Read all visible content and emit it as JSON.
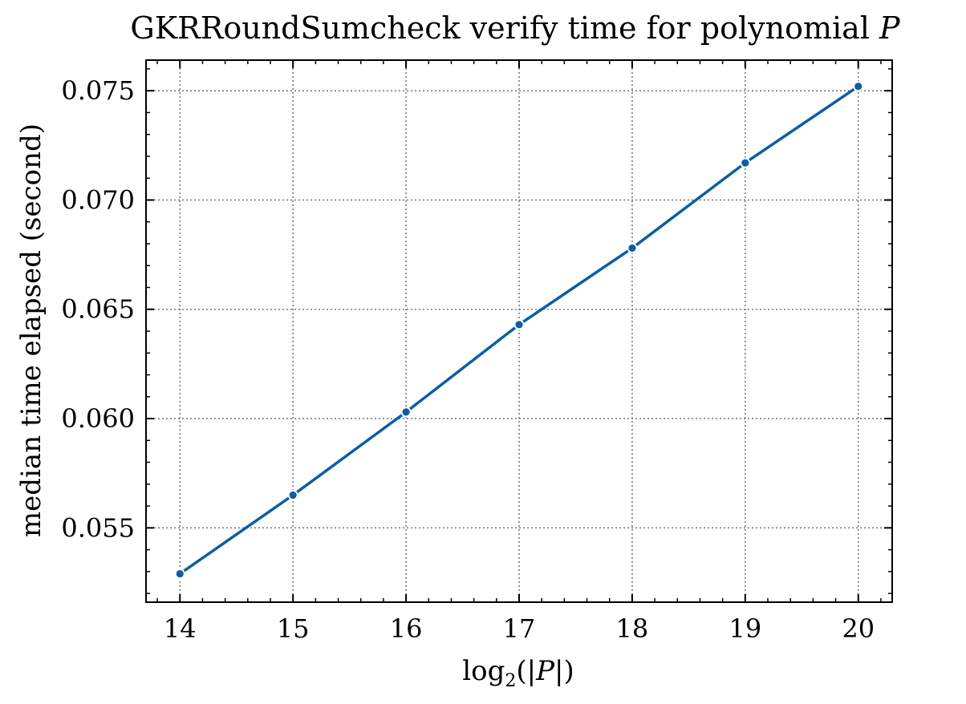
{
  "chart_data": {
    "type": "line",
    "title": {
      "main": "GKRRoundSumcheck verify time for polynomial ",
      "var": "P"
    },
    "xlabel": {
      "prefix": "log",
      "subscript": "2",
      "open": "(|",
      "var": "P",
      "close": "|)"
    },
    "ylabel": "median time elapsed (second)",
    "x": [
      14,
      15,
      16,
      17,
      18,
      19,
      20
    ],
    "series": [
      {
        "values": [
          0.0529,
          0.0565,
          0.0603,
          0.0643,
          0.0678,
          0.0717,
          0.0752
        ]
      }
    ],
    "xlim": [
      13.7,
      20.3
    ],
    "ylim": [
      0.0516,
      0.0764
    ],
    "xticks": [
      14,
      15,
      16,
      17,
      18,
      19,
      20
    ],
    "xtick_labels": [
      "14",
      "15",
      "16",
      "17",
      "18",
      "19",
      "20"
    ],
    "yticks": [
      0.055,
      0.06,
      0.065,
      0.07,
      0.075
    ],
    "ytick_labels": [
      "0.055",
      "0.060",
      "0.065",
      "0.070",
      "0.075"
    ],
    "grid": true,
    "line_color": "#0c5da5",
    "marker": "circle"
  }
}
